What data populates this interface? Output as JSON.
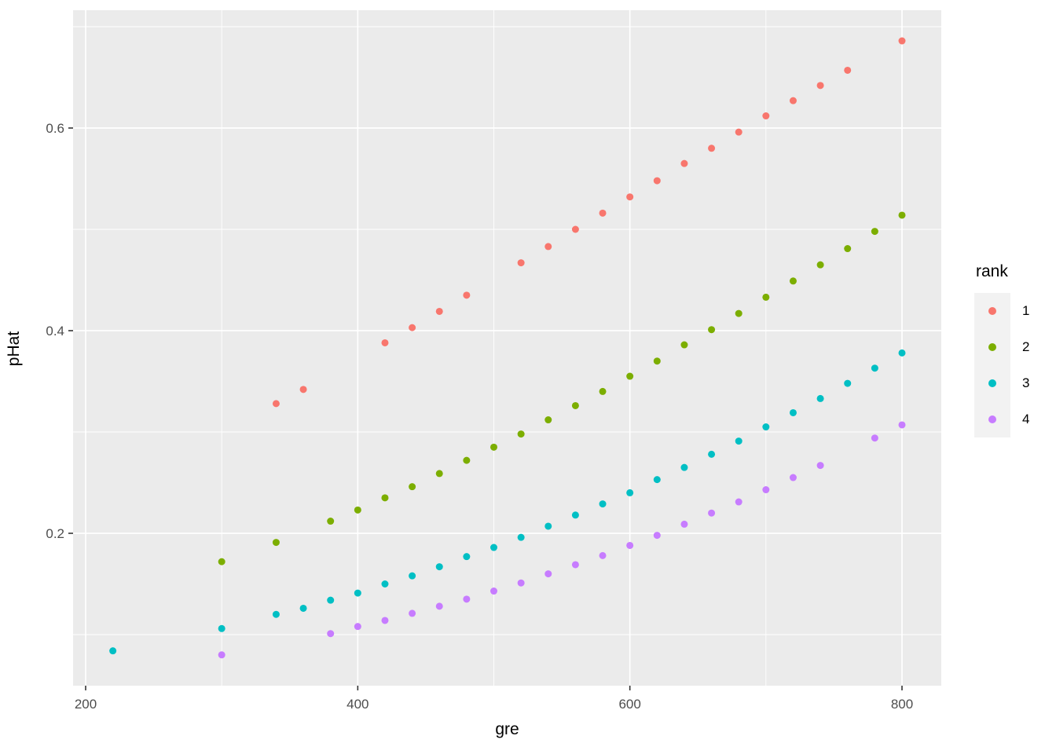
{
  "chart_data": {
    "type": "scatter",
    "title": "",
    "xlabel": "gre",
    "ylabel": "pHat",
    "x_ticks": [
      200,
      400,
      600,
      800
    ],
    "x_tick_labels": [
      "200",
      "400",
      "600",
      "800"
    ],
    "x_minor_ticks": [
      300,
      500,
      700
    ],
    "y_ticks": [
      0.2,
      0.4,
      0.6
    ],
    "y_tick_labels": [
      "0.2",
      "0.4",
      "0.6"
    ],
    "y_minor_ticks": [
      0.1,
      0.3,
      0.5,
      0.7
    ],
    "xlim": [
      191,
      829
    ],
    "ylim": [
      0.05,
      0.716
    ],
    "grid": "major-and-minor-white-on-gray",
    "panel_color": "#EBEBEB",
    "legend": {
      "title": "rank",
      "position": "right",
      "entries": [
        {
          "label": "1",
          "color": "#F8766D"
        },
        {
          "label": "2",
          "color": "#7CAE00"
        },
        {
          "label": "3",
          "color": "#00BFC4"
        },
        {
          "label": "4",
          "color": "#C77CFF"
        }
      ]
    },
    "series": [
      {
        "name": "1",
        "color": "#F8766D",
        "points": [
          [
            340,
            0.328
          ],
          [
            360,
            0.342
          ],
          [
            420,
            0.388
          ],
          [
            440,
            0.403
          ],
          [
            460,
            0.419
          ],
          [
            480,
            0.435
          ],
          [
            520,
            0.467
          ],
          [
            540,
            0.483
          ],
          [
            560,
            0.5
          ],
          [
            580,
            0.516
          ],
          [
            600,
            0.532
          ],
          [
            620,
            0.548
          ],
          [
            640,
            0.565
          ],
          [
            660,
            0.58
          ],
          [
            680,
            0.596
          ],
          [
            700,
            0.612
          ],
          [
            720,
            0.627
          ],
          [
            740,
            0.642
          ],
          [
            760,
            0.657
          ],
          [
            800,
            0.686
          ]
        ]
      },
      {
        "name": "2",
        "color": "#7CAE00",
        "points": [
          [
            300,
            0.172
          ],
          [
            340,
            0.191
          ],
          [
            380,
            0.212
          ],
          [
            400,
            0.223
          ],
          [
            420,
            0.235
          ],
          [
            440,
            0.246
          ],
          [
            460,
            0.259
          ],
          [
            480,
            0.272
          ],
          [
            500,
            0.285
          ],
          [
            520,
            0.298
          ],
          [
            540,
            0.312
          ],
          [
            560,
            0.326
          ],
          [
            580,
            0.34
          ],
          [
            600,
            0.355
          ],
          [
            620,
            0.37
          ],
          [
            640,
            0.386
          ],
          [
            660,
            0.401
          ],
          [
            680,
            0.417
          ],
          [
            700,
            0.433
          ],
          [
            720,
            0.449
          ],
          [
            740,
            0.465
          ],
          [
            760,
            0.481
          ],
          [
            780,
            0.498
          ],
          [
            800,
            0.514
          ]
        ]
      },
      {
        "name": "3",
        "color": "#00BFC4",
        "points": [
          [
            220,
            0.084
          ],
          [
            300,
            0.106
          ],
          [
            340,
            0.12
          ],
          [
            360,
            0.126
          ],
          [
            380,
            0.134
          ],
          [
            400,
            0.141
          ],
          [
            420,
            0.15
          ],
          [
            440,
            0.158
          ],
          [
            460,
            0.167
          ],
          [
            480,
            0.177
          ],
          [
            500,
            0.186
          ],
          [
            520,
            0.196
          ],
          [
            540,
            0.207
          ],
          [
            560,
            0.218
          ],
          [
            580,
            0.229
          ],
          [
            600,
            0.24
          ],
          [
            620,
            0.253
          ],
          [
            640,
            0.265
          ],
          [
            660,
            0.278
          ],
          [
            680,
            0.291
          ],
          [
            700,
            0.305
          ],
          [
            720,
            0.319
          ],
          [
            740,
            0.333
          ],
          [
            760,
            0.348
          ],
          [
            780,
            0.363
          ],
          [
            800,
            0.378
          ]
        ]
      },
      {
        "name": "4",
        "color": "#C77CFF",
        "points": [
          [
            300,
            0.08
          ],
          [
            380,
            0.101
          ],
          [
            400,
            0.108
          ],
          [
            420,
            0.114
          ],
          [
            440,
            0.121
          ],
          [
            460,
            0.128
          ],
          [
            480,
            0.135
          ],
          [
            500,
            0.143
          ],
          [
            520,
            0.151
          ],
          [
            540,
            0.16
          ],
          [
            560,
            0.169
          ],
          [
            580,
            0.178
          ],
          [
            600,
            0.188
          ],
          [
            620,
            0.198
          ],
          [
            640,
            0.209
          ],
          [
            660,
            0.22
          ],
          [
            680,
            0.231
          ],
          [
            700,
            0.243
          ],
          [
            720,
            0.255
          ],
          [
            740,
            0.267
          ],
          [
            780,
            0.294
          ],
          [
            800,
            0.307
          ]
        ]
      }
    ],
    "style": {
      "tick_label_color": "#4D4D4D",
      "tick_mark_color": "#333333",
      "gridline_color": "#FFFFFF",
      "point_radius_px": 4.5
    }
  }
}
